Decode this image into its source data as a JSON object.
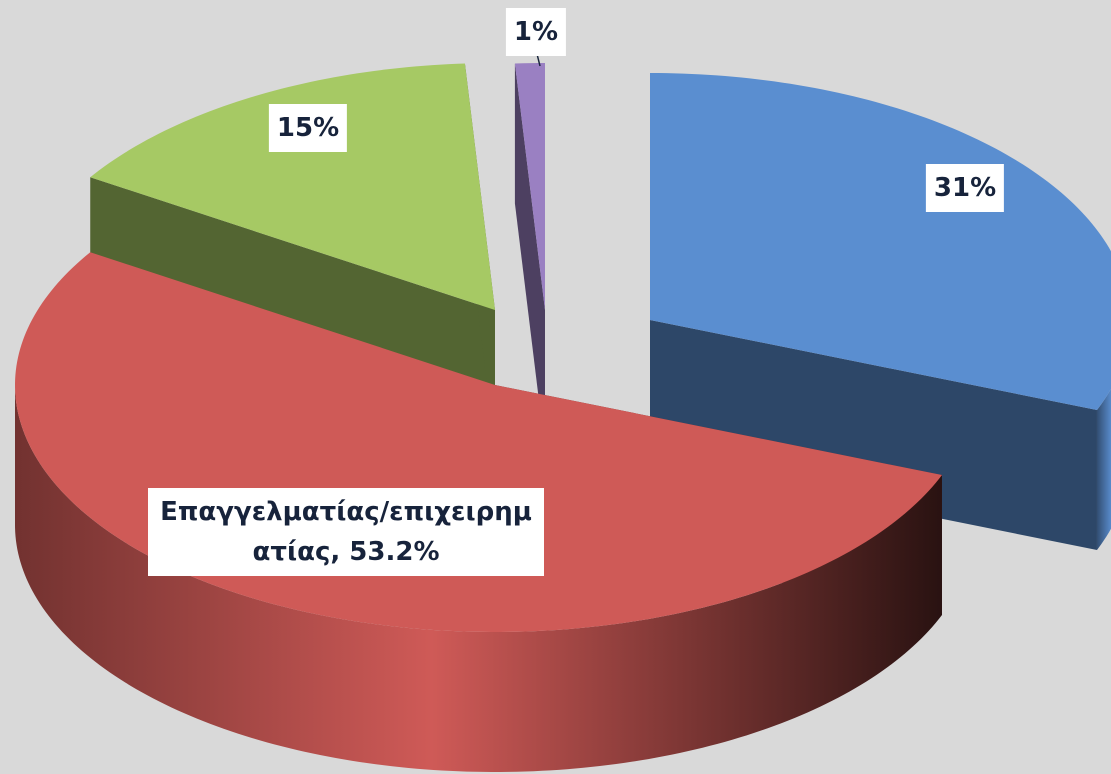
{
  "chart_data": {
    "type": "pie",
    "values": [
      31,
      53.2,
      15,
      1
    ],
    "value_labels": [
      "31%",
      "Επαγγελματίας/επιχειρηματίας, 53.2%",
      "15%",
      "1%"
    ],
    "colors": [
      "#5a8ed0",
      "#cf5a57",
      "#a6c964",
      "#9a80c2"
    ]
  }
}
